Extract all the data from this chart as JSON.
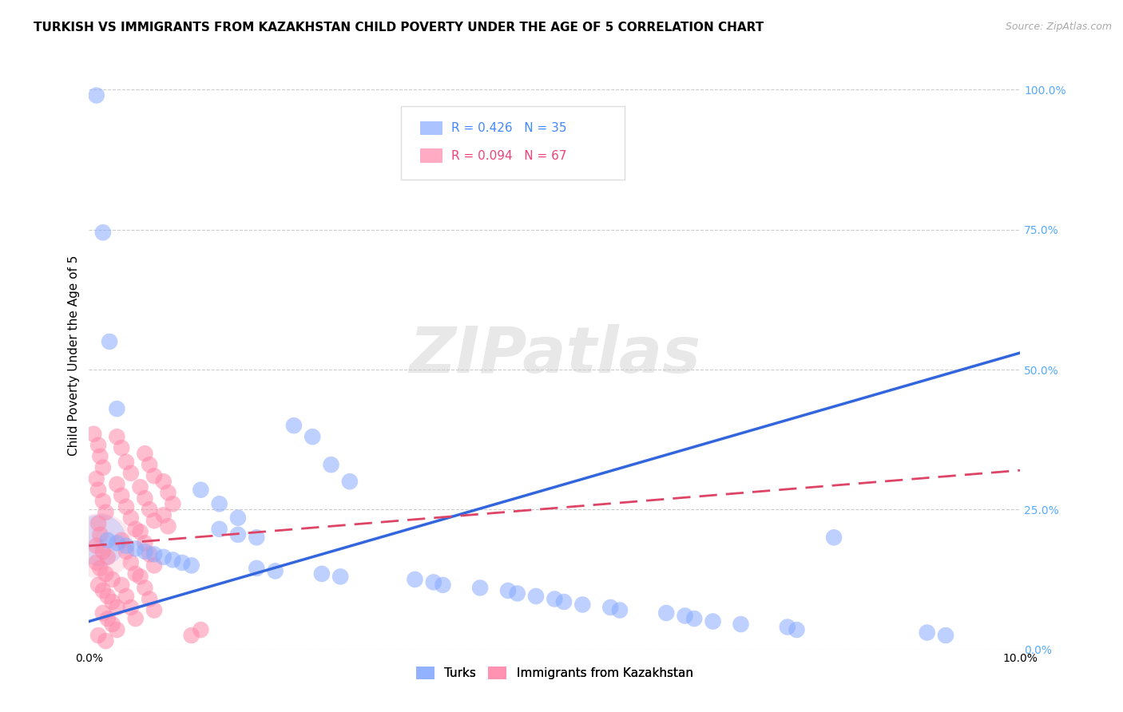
{
  "title": "TURKISH VS IMMIGRANTS FROM KAZAKHSTAN CHILD POVERTY UNDER THE AGE OF 5 CORRELATION CHART",
  "source": "Source: ZipAtlas.com",
  "ylabel": "Child Poverty Under the Age of 5",
  "xlim": [
    0.0,
    0.1
  ],
  "ylim": [
    0.0,
    1.05
  ],
  "xticks": [
    0.0,
    0.02,
    0.04,
    0.06,
    0.08,
    0.1
  ],
  "xticklabels": [
    "0.0%",
    "",
    "",
    "",
    "",
    "10.0%"
  ],
  "yticks_right": [
    0.0,
    0.25,
    0.5,
    0.75,
    1.0
  ],
  "yticklabels_right": [
    "0.0%",
    "25.0%",
    "50.0%",
    "75.0%",
    "100.0%"
  ],
  "grid_color": "#cccccc",
  "background_color": "#ffffff",
  "turks_color": "#88aaff",
  "kazakh_color": "#ff88aa",
  "turks_line_color": "#3366dd",
  "kazakh_line_color": "#dd4466",
  "legend_entries": [
    "Turks",
    "Immigrants from Kazakhstan"
  ],
  "watermark": "ZIPatlas",
  "turks_scatter": [
    [
      0.0008,
      0.99
    ],
    [
      0.0015,
      0.745
    ],
    [
      0.0022,
      0.55
    ],
    [
      0.003,
      0.43
    ],
    [
      0.022,
      0.4
    ],
    [
      0.024,
      0.38
    ],
    [
      0.026,
      0.33
    ],
    [
      0.028,
      0.3
    ],
    [
      0.012,
      0.285
    ],
    [
      0.014,
      0.26
    ],
    [
      0.016,
      0.235
    ],
    [
      0.014,
      0.215
    ],
    [
      0.016,
      0.205
    ],
    [
      0.018,
      0.2
    ],
    [
      0.002,
      0.195
    ],
    [
      0.003,
      0.19
    ],
    [
      0.004,
      0.185
    ],
    [
      0.005,
      0.18
    ],
    [
      0.006,
      0.175
    ],
    [
      0.007,
      0.17
    ],
    [
      0.008,
      0.165
    ],
    [
      0.009,
      0.16
    ],
    [
      0.01,
      0.155
    ],
    [
      0.011,
      0.15
    ],
    [
      0.018,
      0.145
    ],
    [
      0.02,
      0.14
    ],
    [
      0.025,
      0.135
    ],
    [
      0.027,
      0.13
    ],
    [
      0.035,
      0.125
    ],
    [
      0.037,
      0.12
    ],
    [
      0.038,
      0.115
    ],
    [
      0.042,
      0.11
    ],
    [
      0.045,
      0.105
    ],
    [
      0.046,
      0.1
    ],
    [
      0.048,
      0.095
    ],
    [
      0.05,
      0.09
    ],
    [
      0.051,
      0.085
    ],
    [
      0.053,
      0.08
    ],
    [
      0.056,
      0.075
    ],
    [
      0.057,
      0.07
    ],
    [
      0.062,
      0.065
    ],
    [
      0.064,
      0.06
    ],
    [
      0.065,
      0.055
    ],
    [
      0.067,
      0.05
    ],
    [
      0.07,
      0.045
    ],
    [
      0.075,
      0.04
    ],
    [
      0.076,
      0.035
    ],
    [
      0.09,
      0.03
    ],
    [
      0.092,
      0.025
    ],
    [
      0.08,
      0.2
    ]
  ],
  "kazakh_scatter": [
    [
      0.0005,
      0.385
    ],
    [
      0.001,
      0.365
    ],
    [
      0.0012,
      0.345
    ],
    [
      0.0015,
      0.325
    ],
    [
      0.0008,
      0.305
    ],
    [
      0.001,
      0.285
    ],
    [
      0.0015,
      0.265
    ],
    [
      0.0018,
      0.245
    ],
    [
      0.001,
      0.225
    ],
    [
      0.0012,
      0.205
    ],
    [
      0.0008,
      0.185
    ],
    [
      0.0015,
      0.175
    ],
    [
      0.002,
      0.165
    ],
    [
      0.0008,
      0.155
    ],
    [
      0.0012,
      0.145
    ],
    [
      0.0018,
      0.135
    ],
    [
      0.0025,
      0.125
    ],
    [
      0.001,
      0.115
    ],
    [
      0.0015,
      0.105
    ],
    [
      0.002,
      0.095
    ],
    [
      0.0025,
      0.085
    ],
    [
      0.003,
      0.075
    ],
    [
      0.0015,
      0.065
    ],
    [
      0.002,
      0.055
    ],
    [
      0.0025,
      0.045
    ],
    [
      0.003,
      0.035
    ],
    [
      0.001,
      0.025
    ],
    [
      0.0018,
      0.015
    ],
    [
      0.003,
      0.38
    ],
    [
      0.0035,
      0.36
    ],
    [
      0.004,
      0.335
    ],
    [
      0.0045,
      0.315
    ],
    [
      0.003,
      0.295
    ],
    [
      0.0035,
      0.275
    ],
    [
      0.004,
      0.255
    ],
    [
      0.0045,
      0.235
    ],
    [
      0.005,
      0.215
    ],
    [
      0.0035,
      0.195
    ],
    [
      0.004,
      0.175
    ],
    [
      0.0045,
      0.155
    ],
    [
      0.005,
      0.135
    ],
    [
      0.0035,
      0.115
    ],
    [
      0.004,
      0.095
    ],
    [
      0.0045,
      0.075
    ],
    [
      0.005,
      0.055
    ],
    [
      0.006,
      0.35
    ],
    [
      0.0065,
      0.33
    ],
    [
      0.007,
      0.31
    ],
    [
      0.0055,
      0.29
    ],
    [
      0.006,
      0.27
    ],
    [
      0.0065,
      0.25
    ],
    [
      0.007,
      0.23
    ],
    [
      0.0055,
      0.21
    ],
    [
      0.006,
      0.19
    ],
    [
      0.0065,
      0.17
    ],
    [
      0.007,
      0.15
    ],
    [
      0.0055,
      0.13
    ],
    [
      0.006,
      0.11
    ],
    [
      0.0065,
      0.09
    ],
    [
      0.007,
      0.07
    ],
    [
      0.008,
      0.3
    ],
    [
      0.0085,
      0.28
    ],
    [
      0.009,
      0.26
    ],
    [
      0.008,
      0.24
    ],
    [
      0.0085,
      0.22
    ],
    [
      0.011,
      0.025
    ],
    [
      0.012,
      0.035
    ]
  ],
  "turks_line_x": [
    0.0,
    0.1
  ],
  "turks_line_y": [
    0.05,
    0.53
  ],
  "kazakh_line_x": [
    0.0,
    0.1
  ],
  "kazakh_line_y": [
    0.185,
    0.32
  ]
}
